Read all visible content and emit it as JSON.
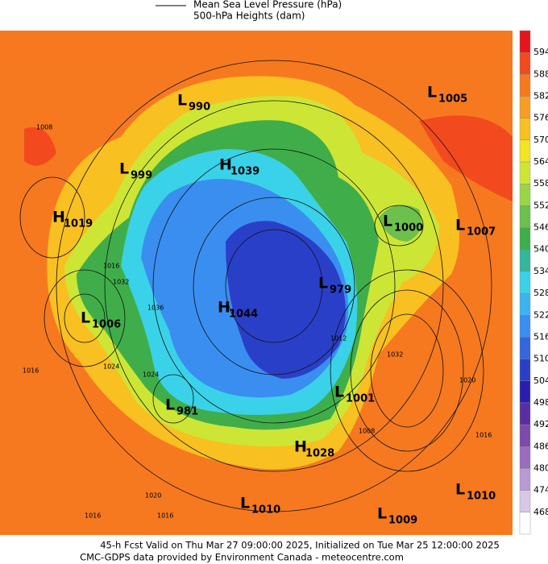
{
  "header": {
    "legend": [
      "Mean Sea Level Pressure (hPa)",
      "500-hPa Heights (dam)"
    ]
  },
  "colorbar": {
    "labels": [
      594,
      588,
      582,
      576,
      570,
      564,
      558,
      552,
      546,
      540,
      534,
      528,
      522,
      516,
      510,
      504,
      498,
      492,
      486,
      480,
      474,
      468
    ],
    "colors": [
      "#e8141c",
      "#f24a1e",
      "#f6791f",
      "#f89d24",
      "#f8c021",
      "#f3e424",
      "#cde636",
      "#9ad546",
      "#6cc04d",
      "#3fae4a",
      "#33b69c",
      "#3ad2e8",
      "#3cb4f0",
      "#3a8ef0",
      "#3466dc",
      "#2a3fc8",
      "#2a1eae",
      "#5a2ea0",
      "#7c4aab",
      "#9a6cbf",
      "#b99ad3",
      "#d8c8e8",
      "#ffffff"
    ]
  },
  "systems": [
    {
      "type": "L",
      "value": 990
    },
    {
      "type": "H",
      "value": 1039
    },
    {
      "type": "L",
      "value": 999
    },
    {
      "type": "H",
      "value": 1019
    },
    {
      "type": "L",
      "value": 1005
    },
    {
      "type": "L",
      "value": 1000
    },
    {
      "type": "L",
      "value": 1007
    },
    {
      "type": "L",
      "value": 979
    },
    {
      "type": "H",
      "value": 1044
    },
    {
      "type": "L",
      "value": 1006
    },
    {
      "type": "L",
      "value": 1001
    },
    {
      "type": "L",
      "value": 981
    },
    {
      "type": "H",
      "value": 1028
    },
    {
      "type": "L",
      "value": 1010
    },
    {
      "type": "L",
      "value": 1009
    },
    {
      "type": "L",
      "value": 1010
    }
  ],
  "contour_labels": [
    1008,
    1016,
    1016,
    1032,
    1024,
    1036,
    1024,
    1008,
    1032,
    1020,
    1016,
    1016,
    1020,
    1016,
    1012
  ],
  "footer": [
    "45-h Fcst Valid on Thu Mar 27 09:00:00 2025, Initialized on Tue Mar 25 12:00:00 2025",
    "CMC-GDPS data provided by Environment Canada - meteocentre.com"
  ]
}
